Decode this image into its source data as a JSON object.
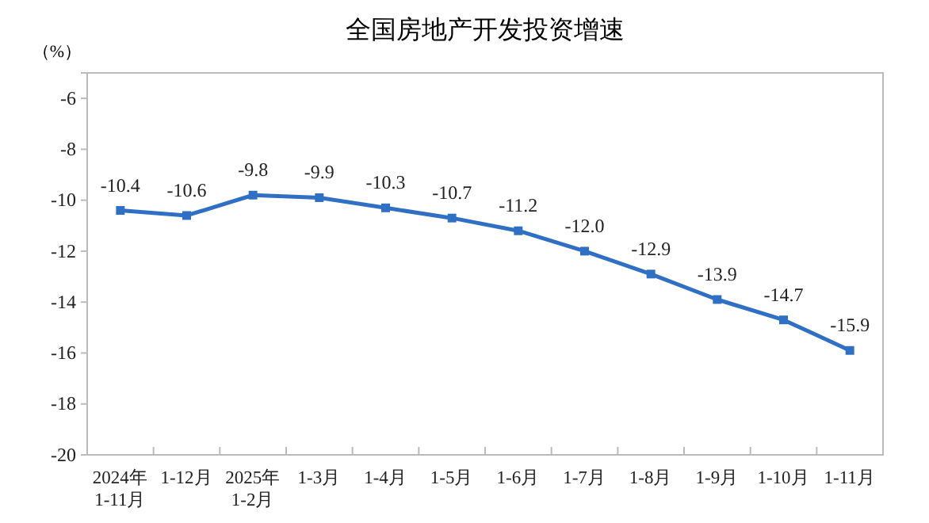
{
  "chart_data": {
    "type": "line",
    "title": "全国房地产开发投资增速",
    "ylabel": "（%）",
    "categories": [
      "2024年 1-11月",
      "1-12月",
      "2025年 1-2月",
      "1-3月",
      "1-4月",
      "1-5月",
      "1-6月",
      "1-7月",
      "1-8月",
      "1-9月",
      "1-10月",
      "1-11月"
    ],
    "series": [
      {
        "color": "#2f6fc4",
        "values": [
          -10.4,
          -10.6,
          -9.8,
          -9.9,
          -10.3,
          -10.7,
          -11.2,
          -12.0,
          -12.9,
          -13.9,
          -14.7,
          -15.9
        ],
        "value_labels": [
          "-10.4",
          "-10.6",
          "-9.8",
          "-9.9",
          "-10.3",
          "-10.7",
          "-11.2",
          "-12.0",
          "-12.9",
          "-13.9",
          "-14.7",
          "-15.9"
        ]
      }
    ],
    "ylim": [
      -20,
      -5
    ],
    "yticks": [
      -20,
      -18,
      -16,
      -14,
      -12,
      -10,
      -8,
      -6
    ],
    "marker": "square",
    "grid": false
  }
}
